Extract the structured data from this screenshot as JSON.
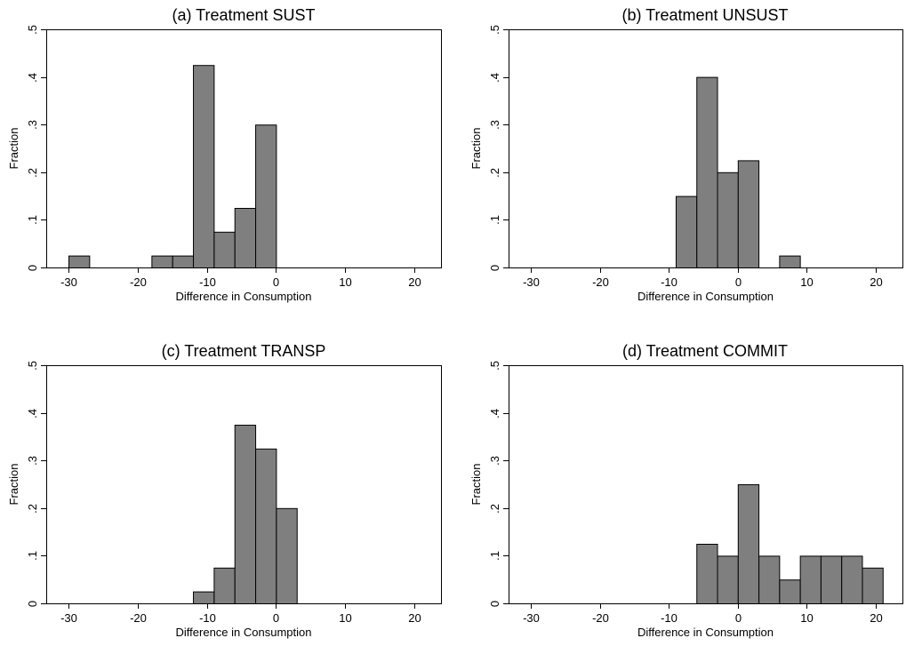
{
  "colors": {
    "bar_fill": "#7f7f7f",
    "bar_stroke": "#000000",
    "background": "#ffffff"
  },
  "chart_data": [
    {
      "type": "bar",
      "title": "(a) Treatment SUST",
      "xlabel": "Difference in Consumption",
      "ylabel": "Fraction",
      "xlim": [
        -30,
        20
      ],
      "ylim": [
        0,
        0.5
      ],
      "bin_width": 3,
      "x_ticks": [
        -30,
        -20,
        -10,
        0,
        10,
        20
      ],
      "x_tick_labels": [
        "-30",
        "-20",
        "-10",
        "0",
        "10",
        "20"
      ],
      "y_ticks": [
        0,
        0.1,
        0.2,
        0.3,
        0.4,
        0.5
      ],
      "y_tick_labels": [
        "0",
        ".1",
        ".2",
        ".3",
        ".4",
        ".5"
      ],
      "grid": false,
      "bins": [
        {
          "start": -30,
          "value": 0.025
        },
        {
          "start": -18,
          "value": 0.025
        },
        {
          "start": -15,
          "value": 0.025
        },
        {
          "start": -12,
          "value": 0.425
        },
        {
          "start": -9,
          "value": 0.075
        },
        {
          "start": -6,
          "value": 0.125
        },
        {
          "start": -3,
          "value": 0.3
        }
      ]
    },
    {
      "type": "bar",
      "title": "(b) Treatment UNSUST",
      "xlabel": "Difference in Consumption",
      "ylabel": "Fraction",
      "xlim": [
        -30,
        20
      ],
      "ylim": [
        0,
        0.5
      ],
      "bin_width": 3,
      "x_ticks": [
        -30,
        -20,
        -10,
        0,
        10,
        20
      ],
      "x_tick_labels": [
        "-30",
        "-20",
        "-10",
        "0",
        "10",
        "20"
      ],
      "y_ticks": [
        0,
        0.1,
        0.2,
        0.3,
        0.4,
        0.5
      ],
      "y_tick_labels": [
        "0",
        ".1",
        ".2",
        ".3",
        ".4",
        ".5"
      ],
      "grid": false,
      "bins": [
        {
          "start": -9,
          "value": 0.15
        },
        {
          "start": -6,
          "value": 0.4
        },
        {
          "start": -3,
          "value": 0.2
        },
        {
          "start": 0,
          "value": 0.225
        },
        {
          "start": 6,
          "value": 0.025
        }
      ]
    },
    {
      "type": "bar",
      "title": "(c) Treatment TRANSP",
      "xlabel": "Difference in Consumption",
      "ylabel": "Fraction",
      "xlim": [
        -30,
        20
      ],
      "ylim": [
        0,
        0.5
      ],
      "bin_width": 3,
      "x_ticks": [
        -30,
        -20,
        -10,
        0,
        10,
        20
      ],
      "x_tick_labels": [
        "-30",
        "-20",
        "-10",
        "0",
        "10",
        "20"
      ],
      "y_ticks": [
        0,
        0.1,
        0.2,
        0.3,
        0.4,
        0.5
      ],
      "y_tick_labels": [
        "0",
        ".1",
        ".2",
        ".3",
        ".4",
        ".5"
      ],
      "grid": false,
      "bins": [
        {
          "start": -12,
          "value": 0.025
        },
        {
          "start": -9,
          "value": 0.075
        },
        {
          "start": -6,
          "value": 0.375
        },
        {
          "start": -3,
          "value": 0.325
        },
        {
          "start": 0,
          "value": 0.2
        }
      ]
    },
    {
      "type": "bar",
      "title": "(d) Treatment COMMIT",
      "xlabel": "Difference in Consumption",
      "ylabel": "Fraction",
      "xlim": [
        -30,
        20
      ],
      "ylim": [
        0,
        0.5
      ],
      "bin_width": 3,
      "x_ticks": [
        -30,
        -20,
        -10,
        0,
        10,
        20
      ],
      "x_tick_labels": [
        "-30",
        "-20",
        "-10",
        "0",
        "10",
        "20"
      ],
      "y_ticks": [
        0,
        0.1,
        0.2,
        0.3,
        0.4,
        0.5
      ],
      "y_tick_labels": [
        "0",
        ".1",
        ".2",
        ".3",
        ".4",
        ".5"
      ],
      "grid": false,
      "bins": [
        {
          "start": -6,
          "value": 0.125
        },
        {
          "start": -3,
          "value": 0.1
        },
        {
          "start": 0,
          "value": 0.25
        },
        {
          "start": 3,
          "value": 0.1
        },
        {
          "start": 6,
          "value": 0.05
        },
        {
          "start": 9,
          "value": 0.1
        },
        {
          "start": 12,
          "value": 0.1
        },
        {
          "start": 15,
          "value": 0.1
        },
        {
          "start": 18,
          "value": 0.075
        }
      ]
    }
  ]
}
